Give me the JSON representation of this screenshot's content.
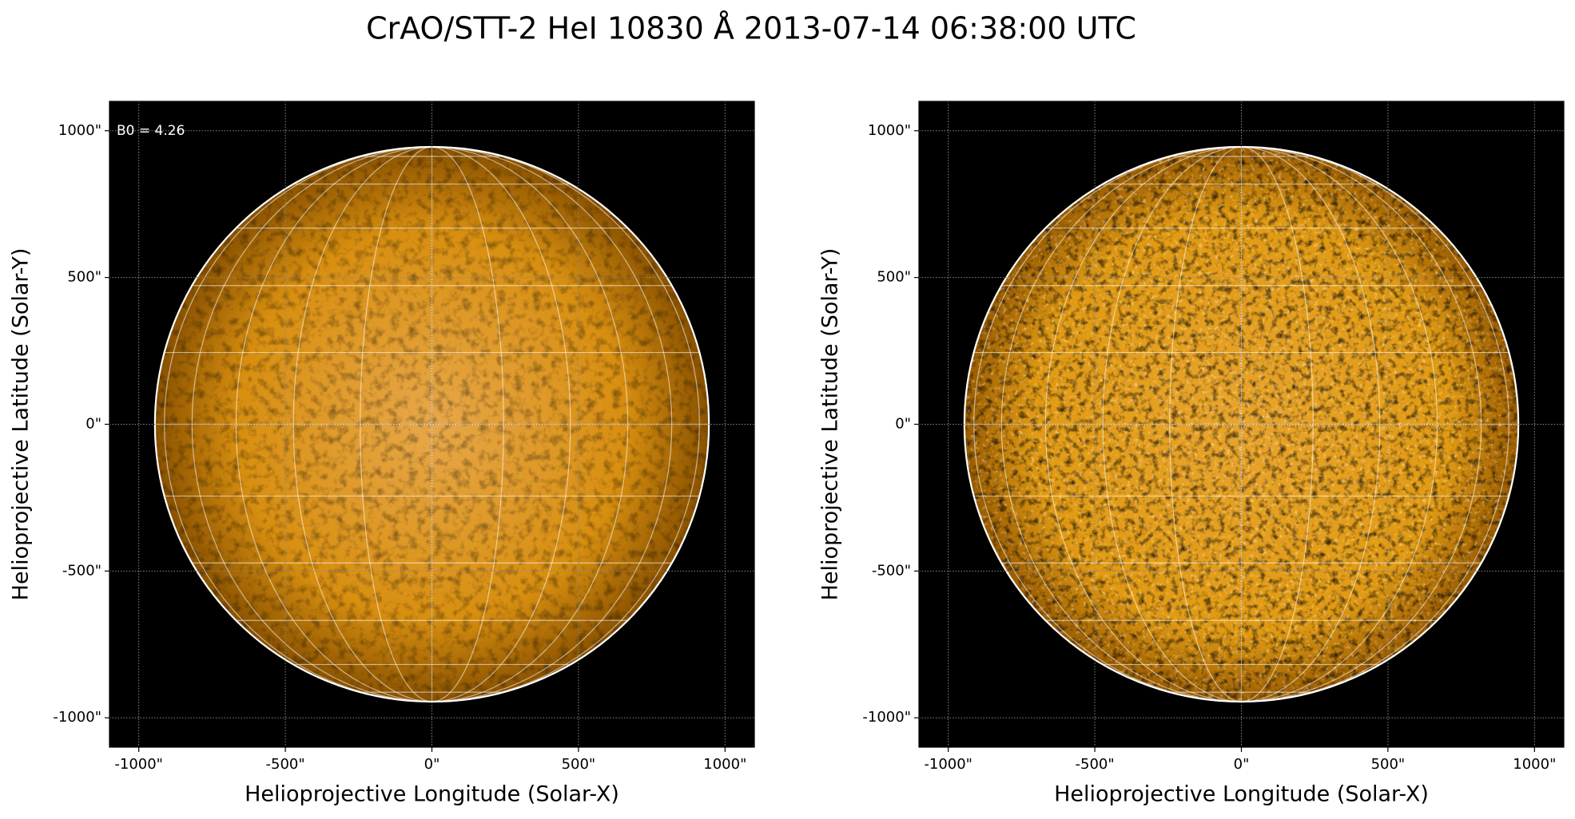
{
  "title": "CrAO/STT-2 HeI 10830 Å 2013-07-14 06:38:00 UTC",
  "chart_data": [
    {
      "type": "image",
      "annotation": "B0 = 4.26",
      "xlabel": "Helioprojective Longitude (Solar-X)",
      "ylabel": "Helioprojective Latitude (Solar-Y)",
      "xlim": [
        -1100,
        1100
      ],
      "ylim": [
        -1100,
        1100
      ],
      "disk_radius": 945,
      "xticks": [
        {
          "value": -1000,
          "label": "-1000\""
        },
        {
          "value": -500,
          "label": "-500\""
        },
        {
          "value": 0,
          "label": "0\""
        },
        {
          "value": 500,
          "label": "500\""
        },
        {
          "value": 1000,
          "label": "1000\""
        }
      ],
      "yticks": [
        {
          "value": -1000,
          "label": "-1000\""
        },
        {
          "value": -500,
          "label": "-500\""
        },
        {
          "value": 0,
          "label": "0\""
        },
        {
          "value": 500,
          "label": "500\""
        },
        {
          "value": 1000,
          "label": "1000\""
        }
      ],
      "grid": true,
      "color": "#d88f10"
    },
    {
      "type": "image",
      "xlabel": "Helioprojective Longitude (Solar-X)",
      "ylabel": "Helioprojective Latitude (Solar-Y)",
      "xlim": [
        -1100,
        1100
      ],
      "ylim": [
        -1100,
        1100
      ],
      "disk_radius": 945,
      "xticks": [
        {
          "value": -1000,
          "label": "-1000\""
        },
        {
          "value": -500,
          "label": "-500\""
        },
        {
          "value": 0,
          "label": "0\""
        },
        {
          "value": 500,
          "label": "500\""
        },
        {
          "value": 1000,
          "label": "1000\""
        }
      ],
      "yticks": [
        {
          "value": -1000,
          "label": "-1000\""
        },
        {
          "value": -500,
          "label": "-500\""
        },
        {
          "value": 0,
          "label": "0\""
        },
        {
          "value": 500,
          "label": "500\""
        },
        {
          "value": 1000,
          "label": "1000\""
        }
      ],
      "grid": true,
      "color": "#e19a12"
    }
  ]
}
